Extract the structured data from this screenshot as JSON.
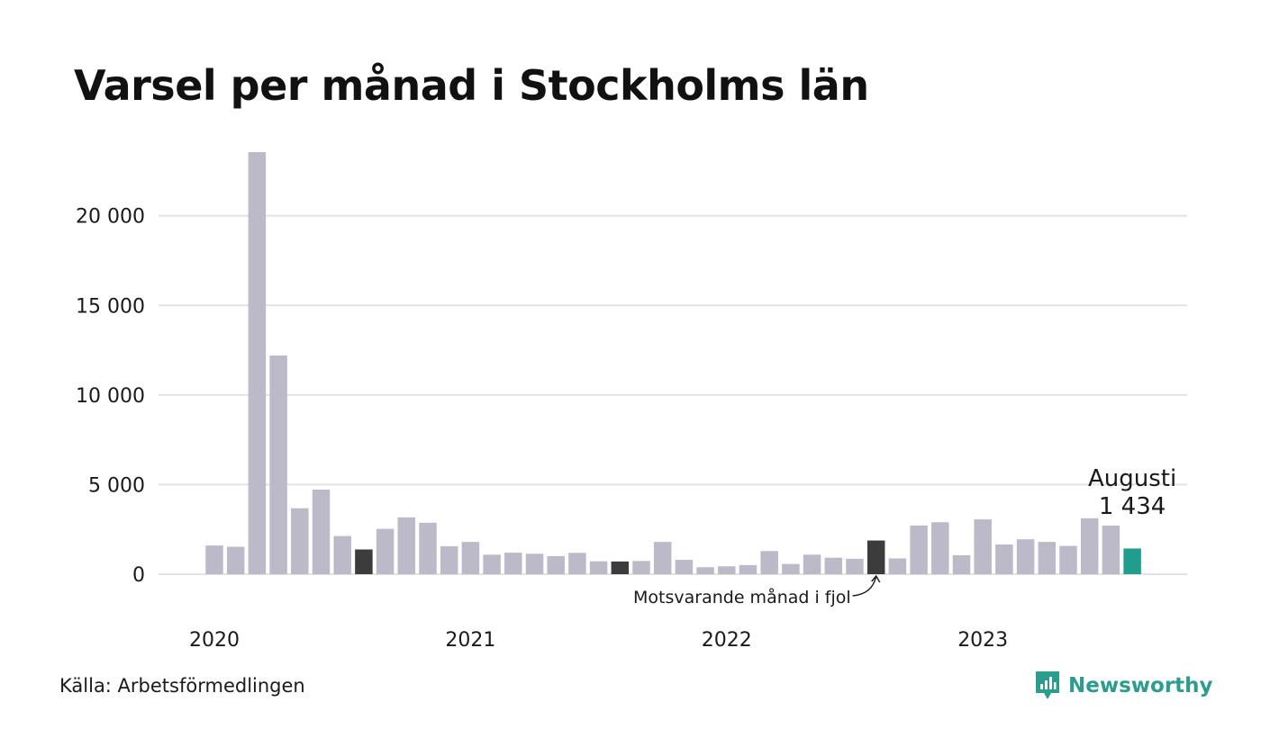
{
  "title": "Varsel per månad i Stockholms län",
  "source": "Källa: Arbetsförmedlingen",
  "brand": "Newsworthy",
  "chart_data": {
    "type": "bar",
    "yticks": [
      0,
      5000,
      10000,
      15000,
      20000
    ],
    "ytick_labels": [
      "0",
      "5 000",
      "10 000",
      "15 000",
      "20 000"
    ],
    "ylim": [
      0,
      23600
    ],
    "xtick_labels": [
      "2020",
      "2021",
      "2022",
      "2023"
    ],
    "grid": true,
    "colors": {
      "default": "#bcbac9",
      "previous_year": "#3c3c3c",
      "current": "#1f9e8e",
      "grid": "#e3e3e3"
    },
    "values": [
      1600,
      1530,
      23550,
      12200,
      3680,
      4720,
      2130,
      1380,
      2530,
      3170,
      2870,
      1560,
      1800,
      1090,
      1200,
      1140,
      1010,
      1190,
      720,
      710,
      740,
      1800,
      800,
      390,
      440,
      510,
      1290,
      570,
      1090,
      920,
      860,
      1880,
      880,
      2720,
      2900,
      1060,
      3060,
      1660,
      1950,
      1800,
      1580,
      3120,
      2710,
      1434
    ],
    "highlight_dark_indices": [
      7,
      19,
      31
    ],
    "highlight_current_index": 43,
    "annotation": "Motsvarande månad i fjol",
    "current_label": {
      "month": "Augusti",
      "value": "1 434"
    }
  }
}
